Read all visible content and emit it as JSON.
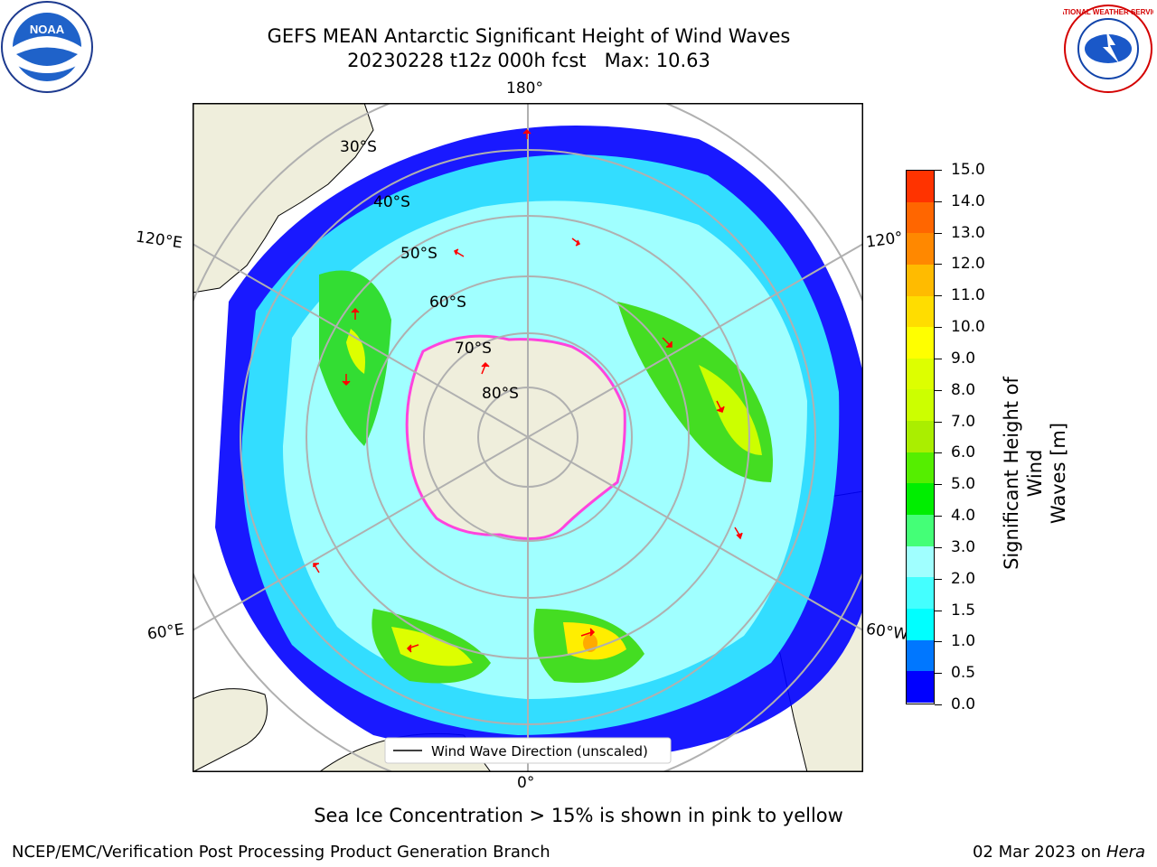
{
  "title": {
    "line1": "GEFS MEAN Antarctic Significant Height of Wind Waves",
    "line2": "20230228 t12z 000h fcst   Max: 10.63"
  },
  "logos": {
    "left": "noaa-logo",
    "right": "national-weather-service-logo",
    "left_text": "NOAA",
    "right_text": "NATIONAL WEATHER SERVICE"
  },
  "map": {
    "projection": "south-polar-stereographic",
    "lon_labels": {
      "top": "180°",
      "bottom": "0°",
      "left_upper": "120°E",
      "left_lower": "60°E",
      "right_upper": "120°",
      "right_lower": "60°W"
    },
    "lat_labels": [
      "30°S",
      "40°S",
      "50°S",
      "60°S",
      "70°S",
      "80°S"
    ],
    "legend_label": "Wind Wave Direction (unscaled)",
    "colors": {
      "land": "#efeedc",
      "ocean_blank": "#ffffff",
      "ice_edge": "#ff44dd",
      "arrow": "#ff0000",
      "grid": "#b0b0b0"
    }
  },
  "colorbar": {
    "title_line1": "Significant Height of Wind",
    "title_line2": "Waves [m]",
    "ticks": [
      "0.0",
      "0.5",
      "1.0",
      "1.5",
      "2.0",
      "3.0",
      "4.0",
      "5.0",
      "6.0",
      "7.0",
      "8.0",
      "9.0",
      "10.0",
      "11.0",
      "12.0",
      "13.0",
      "14.0",
      "15.0"
    ],
    "colors": [
      "#0000ff",
      "#0077ff",
      "#00ffff",
      "#44ffff",
      "#a0ffff",
      "#44ff77",
      "#00ee00",
      "#55ee00",
      "#aaee00",
      "#ccff00",
      "#ddff00",
      "#ffff00",
      "#ffdd00",
      "#ffbb00",
      "#ff8800",
      "#ff6600",
      "#ff3300"
    ]
  },
  "footnote": "Sea Ice Concentration > 15% is shown in pink to yellow",
  "credit": "NCEP/EMC/Verification Post Processing Product Generation Branch",
  "date": "02 Mar 2023 on",
  "date_system": "Hera"
}
